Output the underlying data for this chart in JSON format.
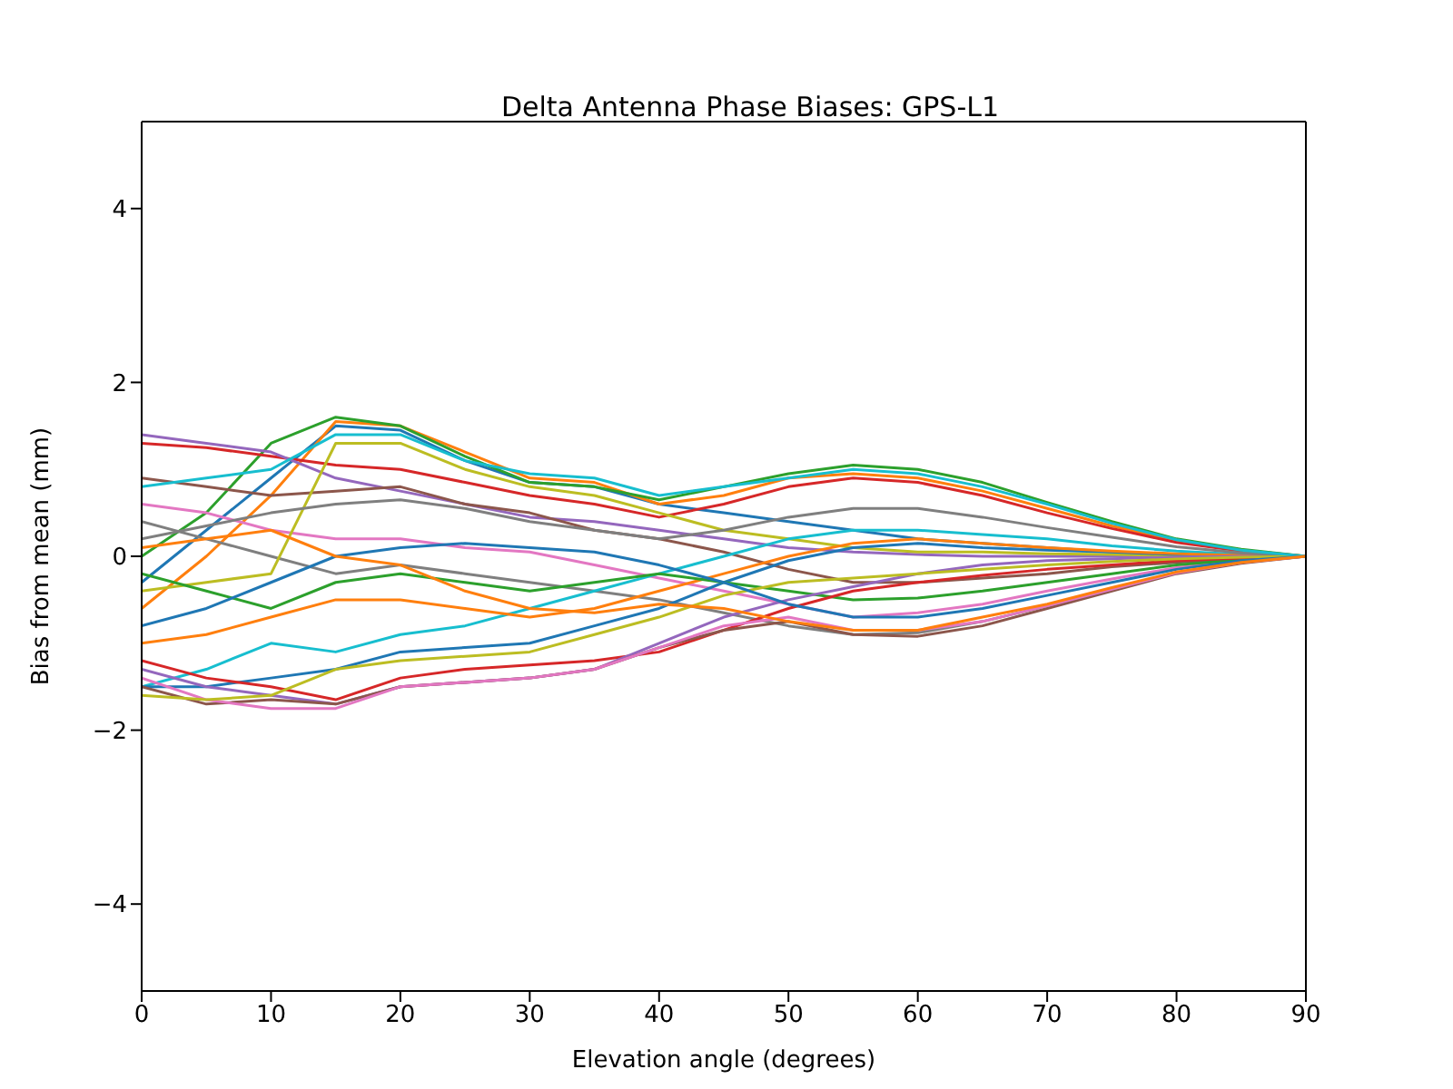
{
  "chart_data": {
    "type": "line",
    "title": "Delta Antenna Phase Biases: GPS-L1",
    "xlabel": "Elevation angle (degrees)",
    "ylabel": "Bias from mean (mm)",
    "x": [
      0,
      5,
      10,
      15,
      20,
      25,
      30,
      35,
      40,
      45,
      50,
      55,
      60,
      65,
      70,
      75,
      80,
      85,
      90
    ],
    "xlim": [
      0,
      90
    ],
    "xticks": [
      0,
      10,
      20,
      30,
      40,
      50,
      60,
      70,
      80,
      90
    ],
    "ylim": [
      -5,
      5
    ],
    "yticks": [
      {
        "value": -4,
        "label": "−4"
      },
      {
        "value": -2,
        "label": "−2"
      },
      0,
      2,
      4
    ],
    "grid": false,
    "marker": "none",
    "line_style": "solid",
    "series": [
      {
        "color": "#1f77b4",
        "values": [
          -0.3,
          0.3,
          0.9,
          1.5,
          1.45,
          1.1,
          0.85,
          0.8,
          0.6,
          0.5,
          0.4,
          0.3,
          0.2,
          0.15,
          0.1,
          0.05,
          0.02,
          0.01,
          0
        ]
      },
      {
        "color": "#ff7f0e",
        "values": [
          -0.6,
          0,
          0.7,
          1.55,
          1.5,
          1.2,
          0.9,
          0.85,
          0.6,
          0.7,
          0.9,
          0.95,
          0.9,
          0.75,
          0.55,
          0.35,
          0.18,
          0.07,
          0
        ]
      },
      {
        "color": "#2ca02c",
        "values": [
          0,
          0.5,
          1.3,
          1.6,
          1.5,
          1.15,
          0.85,
          0.8,
          0.65,
          0.8,
          0.95,
          1.05,
          1.0,
          0.85,
          0.62,
          0.4,
          0.2,
          0.08,
          0
        ]
      },
      {
        "color": "#d62728",
        "values": [
          1.3,
          1.25,
          1.15,
          1.05,
          1.0,
          0.85,
          0.7,
          0.6,
          0.45,
          0.6,
          0.8,
          0.9,
          0.85,
          0.7,
          0.5,
          0.32,
          0.16,
          0.06,
          0
        ]
      },
      {
        "color": "#9467bd",
        "values": [
          1.4,
          1.3,
          1.2,
          0.9,
          0.75,
          0.6,
          0.45,
          0.4,
          0.3,
          0.2,
          0.1,
          0.05,
          0.02,
          0,
          0,
          0,
          0,
          0,
          0
        ]
      },
      {
        "color": "#8c564b",
        "values": [
          0.9,
          0.8,
          0.7,
          0.75,
          0.8,
          0.6,
          0.5,
          0.3,
          0.2,
          0.05,
          -0.15,
          -0.3,
          -0.3,
          -0.25,
          -0.2,
          -0.12,
          -0.07,
          -0.03,
          0
        ]
      },
      {
        "color": "#e377c2",
        "values": [
          0.6,
          0.5,
          0.3,
          0.2,
          0.2,
          0.1,
          0.05,
          -0.1,
          -0.25,
          -0.4,
          -0.55,
          -0.7,
          -0.65,
          -0.55,
          -0.4,
          -0.26,
          -0.13,
          -0.05,
          0
        ]
      },
      {
        "color": "#7f7f7f",
        "values": [
          0.4,
          0.2,
          0,
          -0.2,
          -0.1,
          -0.2,
          -0.3,
          -0.4,
          -0.5,
          -0.65,
          -0.8,
          -0.9,
          -0.88,
          -0.75,
          -0.57,
          -0.38,
          -0.19,
          -0.07,
          0
        ]
      },
      {
        "color": "#bcbd22",
        "values": [
          -0.4,
          -0.3,
          -0.2,
          1.3,
          1.3,
          1.0,
          0.8,
          0.7,
          0.5,
          0.3,
          0.2,
          0.1,
          0.05,
          0.05,
          0.03,
          0.02,
          0.01,
          0,
          0
        ]
      },
      {
        "color": "#17becf",
        "values": [
          -1.5,
          -1.3,
          -1.0,
          -1.1,
          -0.9,
          -0.8,
          -0.6,
          -0.4,
          -0.2,
          0,
          0.2,
          0.3,
          0.3,
          0.25,
          0.2,
          0.12,
          0.06,
          0.02,
          0
        ]
      },
      {
        "color": "#1f77b4",
        "values": [
          -1.5,
          -1.5,
          -1.4,
          -1.3,
          -1.1,
          -1.05,
          -1.0,
          -0.8,
          -0.6,
          -0.3,
          -0.05,
          0.1,
          0.15,
          0.1,
          0.07,
          0.05,
          0.02,
          0.01,
          0
        ]
      },
      {
        "color": "#ff7f0e",
        "values": [
          -1.0,
          -0.9,
          -0.7,
          -0.5,
          -0.5,
          -0.6,
          -0.7,
          -0.6,
          -0.4,
          -0.2,
          0,
          0.15,
          0.2,
          0.15,
          0.1,
          0.06,
          0.03,
          0.01,
          0
        ]
      },
      {
        "color": "#2ca02c",
        "values": [
          -0.2,
          -0.4,
          -0.6,
          -0.3,
          -0.2,
          -0.3,
          -0.4,
          -0.3,
          -0.2,
          -0.3,
          -0.4,
          -0.5,
          -0.48,
          -0.4,
          -0.3,
          -0.2,
          -0.1,
          -0.04,
          0
        ]
      },
      {
        "color": "#d62728",
        "values": [
          -1.2,
          -1.4,
          -1.5,
          -1.65,
          -1.4,
          -1.3,
          -1.25,
          -1.2,
          -1.1,
          -0.85,
          -0.6,
          -0.4,
          -0.3,
          -0.22,
          -0.15,
          -0.1,
          -0.05,
          -0.02,
          0
        ]
      },
      {
        "color": "#9467bd",
        "values": [
          -1.3,
          -1.5,
          -1.6,
          -1.7,
          -1.5,
          -1.45,
          -1.4,
          -1.3,
          -1.0,
          -0.7,
          -0.5,
          -0.35,
          -0.2,
          -0.1,
          -0.05,
          -0.03,
          -0.01,
          0,
          0
        ]
      },
      {
        "color": "#8c564b",
        "values": [
          -1.5,
          -1.7,
          -1.65,
          -1.7,
          -1.5,
          -1.45,
          -1.4,
          -1.3,
          -1.05,
          -0.85,
          -0.75,
          -0.9,
          -0.92,
          -0.8,
          -0.6,
          -0.4,
          -0.2,
          -0.08,
          0
        ]
      },
      {
        "color": "#e377c2",
        "values": [
          -1.4,
          -1.65,
          -1.75,
          -1.75,
          -1.5,
          -1.45,
          -1.4,
          -1.3,
          -1.05,
          -0.8,
          -0.7,
          -0.85,
          -0.85,
          -0.75,
          -0.57,
          -0.38,
          -0.19,
          -0.07,
          0
        ]
      },
      {
        "color": "#7f7f7f",
        "values": [
          0.2,
          0.35,
          0.5,
          0.6,
          0.65,
          0.55,
          0.4,
          0.3,
          0.2,
          0.3,
          0.45,
          0.55,
          0.55,
          0.45,
          0.33,
          0.22,
          0.11,
          0.04,
          0
        ]
      },
      {
        "color": "#bcbd22",
        "values": [
          -1.6,
          -1.65,
          -1.6,
          -1.3,
          -1.2,
          -1.15,
          -1.1,
          -0.9,
          -0.7,
          -0.45,
          -0.3,
          -0.25,
          -0.2,
          -0.15,
          -0.1,
          -0.06,
          -0.03,
          -0.01,
          0
        ]
      },
      {
        "color": "#17becf",
        "values": [
          0.8,
          0.9,
          1.0,
          1.4,
          1.4,
          1.1,
          0.95,
          0.9,
          0.7,
          0.8,
          0.9,
          1.0,
          0.95,
          0.8,
          0.6,
          0.38,
          0.19,
          0.07,
          0
        ]
      },
      {
        "color": "#1f77b4",
        "values": [
          -0.8,
          -0.6,
          -0.3,
          0,
          0.1,
          0.15,
          0.1,
          0.05,
          -0.1,
          -0.3,
          -0.55,
          -0.7,
          -0.7,
          -0.6,
          -0.45,
          -0.3,
          -0.15,
          -0.05,
          0
        ]
      },
      {
        "color": "#ff7f0e",
        "values": [
          0.1,
          0.2,
          0.3,
          0,
          -0.1,
          -0.4,
          -0.6,
          -0.65,
          -0.55,
          -0.6,
          -0.75,
          -0.85,
          -0.85,
          -0.7,
          -0.55,
          -0.36,
          -0.18,
          -0.07,
          0
        ]
      }
    ]
  }
}
